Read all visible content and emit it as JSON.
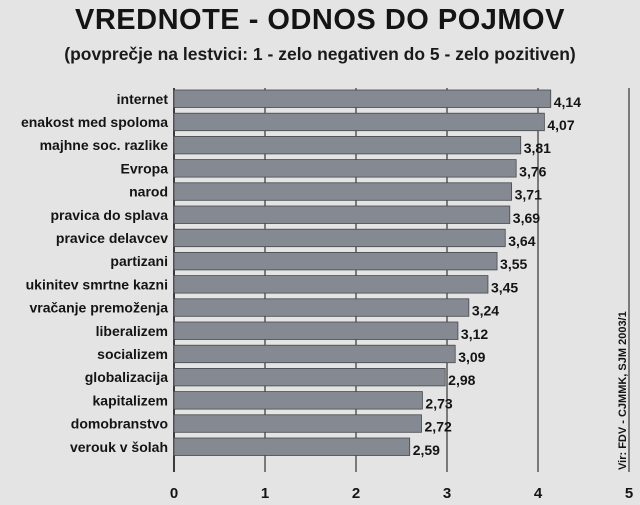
{
  "chart_data": {
    "type": "bar",
    "orientation": "horizontal",
    "title": "VREDNOTE - ODNOS DO POJMOV",
    "subtitle": "(povprečje na lestvici: 1 - zelo negativen do 5 - zelo pozitiven)",
    "categories": [
      "internet",
      "enakost med spoloma",
      "majhne soc. razlike",
      "Evropa",
      "narod",
      "pravica do splava",
      "pravice delavcev",
      "partizani",
      "ukinitev smrtne kazni",
      "vračanje premoženja",
      "liberalizem",
      "socializem",
      "globalizacija",
      "kapitalizem",
      "domobranstvo",
      "verouk v šolah"
    ],
    "values": [
      4.14,
      4.07,
      3.81,
      3.76,
      3.71,
      3.69,
      3.64,
      3.55,
      3.45,
      3.24,
      3.12,
      3.09,
      2.98,
      2.73,
      2.72,
      2.59
    ],
    "value_labels": [
      "4,14",
      "4,07",
      "3,81",
      "3,76",
      "3,71",
      "3,69",
      "3,64",
      "3,55",
      "3,45",
      "3,24",
      "3,12",
      "3,09",
      "2,98",
      "2,73",
      "2,72",
      "2,59"
    ],
    "xlim": [
      0,
      5
    ],
    "xticks": [
      "0",
      "1",
      "2",
      "3",
      "4",
      "5"
    ],
    "grid": true,
    "source": "Vir: FDV - CJMMK, SJM 2003/1",
    "colors": {
      "bar": "#858a92",
      "bar_edge": "#45484d",
      "grid": "#111111",
      "background": "#e4e4e4"
    }
  }
}
